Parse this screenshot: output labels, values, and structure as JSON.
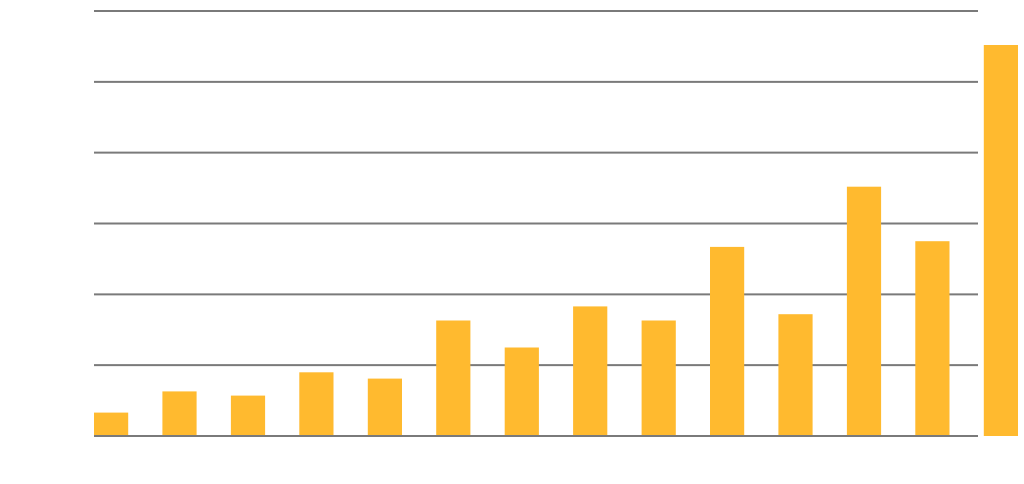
{
  "chart_data": {
    "type": "bar",
    "title": "",
    "xlabel": "",
    "ylabel": "",
    "categories": [
      "",
      "",
      "",
      "",
      "",
      "",
      "",
      "",
      "",
      "",
      "",
      "",
      "",
      ""
    ],
    "values": [
      0.33,
      0.63,
      0.57,
      0.9,
      0.81,
      1.63,
      1.25,
      1.83,
      1.63,
      2.67,
      1.72,
      3.52,
      2.75,
      5.52
    ],
    "ylim": [
      0,
      6
    ],
    "y_ticks": [
      0,
      1,
      2,
      3,
      4,
      5,
      6
    ],
    "tick_labels_visible": false,
    "grid": true,
    "legend": "none",
    "colors": {
      "bar": "#ffba2f",
      "grid": "#7a7a7a",
      "axis": "#7a7a7a",
      "background": "#ffffff"
    }
  }
}
